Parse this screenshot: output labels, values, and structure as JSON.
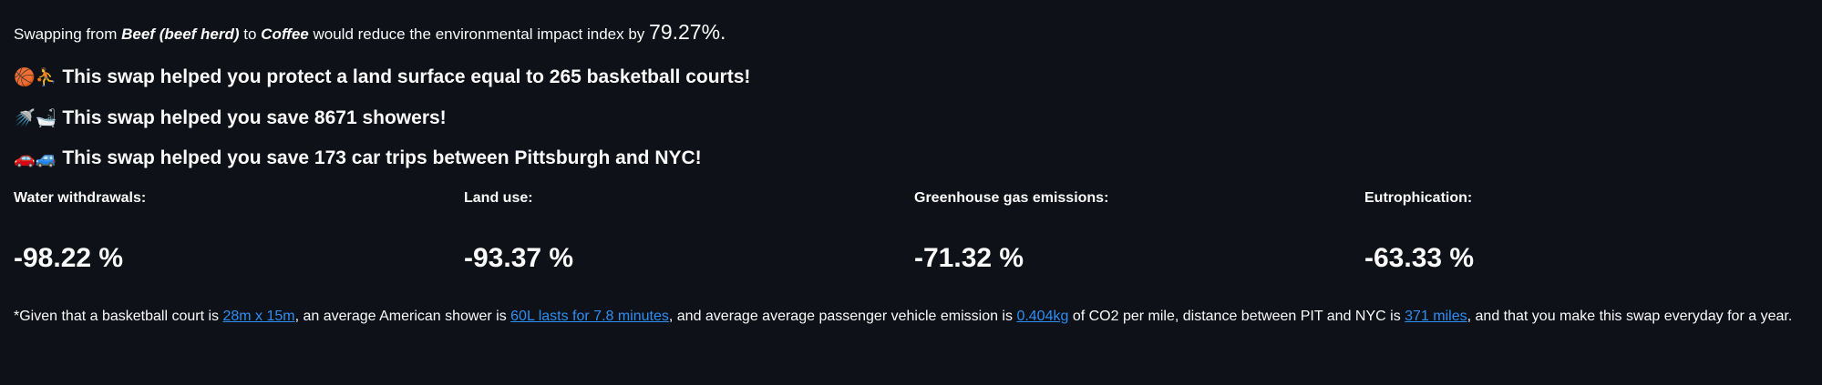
{
  "summary": {
    "prefix": "Swapping from ",
    "from_food": "Beef (beef herd)",
    "middle": " to ",
    "to_food": "Coffee",
    "suffix": " would reduce the environmental impact index by ",
    "reduction": "79.27%."
  },
  "facts": [
    {
      "emoji": "🏀⛹",
      "text": "This swap helped you protect a land surface equal to 265 basketball courts!"
    },
    {
      "emoji": "🚿🛁",
      "text": "This swap helped you save 8671 showers!"
    },
    {
      "emoji": "🚗🚙",
      "text": "This swap helped you save 173 car trips between Pittsburgh and NYC!"
    }
  ],
  "metrics": [
    {
      "label": "Water withdrawals:",
      "value": "-98.22 %"
    },
    {
      "label": "Land use:",
      "value": "-93.37 %"
    },
    {
      "label": "Greenhouse gas emissions:",
      "value": "-71.32 %"
    },
    {
      "label": "Eutrophication:",
      "value": "-63.33 %"
    }
  ],
  "footnote": {
    "t1": "*Given that a basketball court is ",
    "link1": "28m x 15m",
    "t2": ", an average American shower is ",
    "link2": "60L lasts for 7.8 minutes",
    "t3": ", and average average passenger vehicle emission is ",
    "link3": "0.404kg",
    "t4": " of CO2 per mile, distance between PIT and NYC is ",
    "link4": "371 miles",
    "t5": ", and that you make this swap everyday for a year."
  },
  "colors": {
    "background": "#0e1117",
    "text": "#fafafa",
    "link": "#2e8ef3"
  }
}
